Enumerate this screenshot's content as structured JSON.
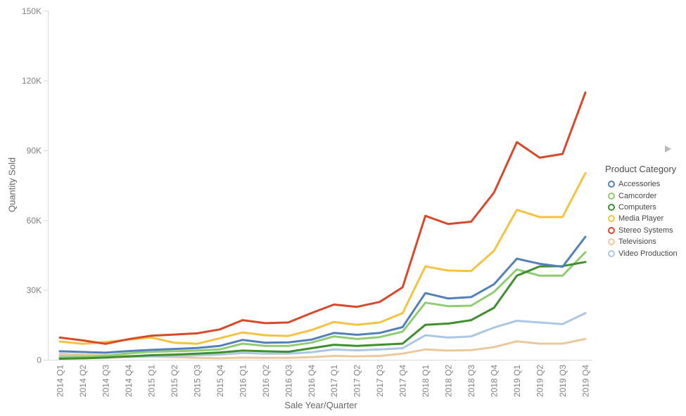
{
  "chart_data": {
    "type": "line",
    "title": "",
    "xlabel": "Sale Year/Quarter",
    "ylabel": "Quantity Sold",
    "ylim": [
      0,
      150000
    ],
    "grid": false,
    "yticks": {
      "values": [
        0,
        30000,
        60000,
        90000,
        120000,
        150000
      ],
      "labels": [
        "0",
        "30K",
        "60K",
        "90K",
        "120K",
        "150K"
      ]
    },
    "categories": [
      "2014 Q1",
      "2014 Q2",
      "2014 Q3",
      "2014 Q4",
      "2015 Q1",
      "2015 Q2",
      "2015 Q3",
      "2015 Q4",
      "2016 Q1",
      "2016 Q2",
      "2016 Q3",
      "2016 Q4",
      "2017 Q1",
      "2017 Q2",
      "2017 Q3",
      "2017 Q4",
      "2018 Q1",
      "2018 Q2",
      "2018 Q3",
      "2018 Q4",
      "2019 Q1",
      "2019 Q2",
      "2019 Q3",
      "2019 Q4"
    ],
    "legend": {
      "title": "Product Category",
      "position": "right",
      "expand_arrow_icon": "right-triangle-arrow",
      "expand_arrow_color": "#b9b9b9"
    },
    "axis_colors": {
      "axis_line": "#d9d9d9",
      "tick_label": "#828282",
      "axis_title": "#666666"
    },
    "series": [
      {
        "name": "Accessories",
        "color": "#5480b9",
        "values": [
          3800,
          3500,
          3200,
          3900,
          4400,
          4800,
          5200,
          6100,
          8700,
          7500,
          7600,
          8800,
          11700,
          10900,
          11700,
          14200,
          28800,
          26500,
          27100,
          32600,
          43600,
          41400,
          40100,
          53000
        ]
      },
      {
        "name": "Camcorder",
        "color": "#8fcc72",
        "values": [
          1100,
          1400,
          1900,
          2900,
          3600,
          3800,
          4100,
          4600,
          7100,
          6100,
          6100,
          7500,
          10200,
          9100,
          9900,
          12200,
          24700,
          23200,
          23400,
          29300,
          39000,
          36300,
          36300,
          46400
        ]
      },
      {
        "name": "Computers",
        "color": "#3f8f2e",
        "values": [
          600,
          800,
          1100,
          1600,
          2100,
          2400,
          2800,
          3300,
          4100,
          3800,
          3600,
          5100,
          6600,
          6100,
          6600,
          7100,
          15200,
          15700,
          17200,
          22500,
          36300,
          40300,
          40400,
          42200
        ]
      },
      {
        "name": "Media Player",
        "color": "#f5c242",
        "values": [
          8000,
          7000,
          7800,
          8800,
          9700,
          7500,
          7000,
          9400,
          11900,
          10700,
          10400,
          12900,
          16400,
          15200,
          16200,
          20200,
          40300,
          38500,
          38300,
          47000,
          64600,
          61500,
          61500,
          80400
        ]
      },
      {
        "name": "Stereo Systems",
        "color": "#d7492a",
        "values": [
          9700,
          8500,
          7000,
          9000,
          10500,
          11000,
          11500,
          13200,
          17200,
          15900,
          16200,
          20200,
          23900,
          22900,
          25000,
          31300,
          62000,
          58500,
          59500,
          72000,
          93700,
          87000,
          88600,
          115000
        ]
      },
      {
        "name": "Televisions",
        "color": "#eac99c",
        "values": [
          2700,
          2400,
          2100,
          1900,
          1600,
          1300,
          1000,
          800,
          1100,
          1000,
          1000,
          1300,
          1800,
          1600,
          1800,
          2800,
          4600,
          4100,
          4300,
          5600,
          8100,
          7100,
          7100,
          9100
        ]
      },
      {
        "name": "Video Production",
        "color": "#adc7e3",
        "values": [
          1800,
          1600,
          1400,
          1400,
          1600,
          1800,
          2100,
          2400,
          3100,
          2800,
          2800,
          3400,
          4600,
          4200,
          4600,
          5100,
          10700,
          9700,
          10200,
          14000,
          16900,
          16200,
          15500,
          20200
        ]
      }
    ]
  }
}
